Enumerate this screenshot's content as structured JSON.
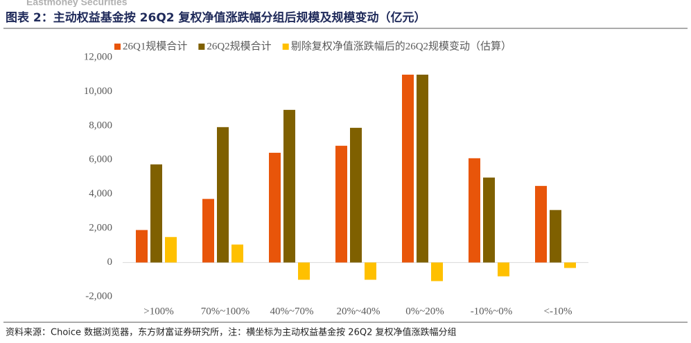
{
  "brand": "Eastmoney Securities",
  "title": "图表 2：主动权益基金按 26Q2 复权净值涨跌幅分组后规模及规模变动（亿元）",
  "footer": "资料来源：Choice 数据浏览器，东方财富证券研究所，注：横坐标为主动权益基金按 26Q2 复权净值涨跌幅分组",
  "chart_data": {
    "type": "bar",
    "categories": [
      ">100%",
      "70%~100%",
      "40%~70%",
      "20%~40%",
      "0%~20%",
      "-10%~0%",
      "<-10%"
    ],
    "series": [
      {
        "name": "26Q1规模合计",
        "color": "#E8550A",
        "values": [
          1900,
          3720,
          6420,
          6830,
          10990,
          6100,
          4480
        ]
      },
      {
        "name": "26Q2规模合计",
        "color": "#7F6000",
        "values": [
          5740,
          7920,
          8930,
          7880,
          10990,
          4970,
          3070
        ]
      },
      {
        "name": "剔除复权净值涨跌幅后的26Q2规模变动（估算）",
        "color": "#FFC000",
        "values": [
          1490,
          1050,
          -1010,
          -1010,
          -1090,
          -810,
          -320
        ]
      }
    ],
    "ylim": [
      -2000,
      12000
    ],
    "yticks": [
      {
        "value": -2000,
        "label": "-2,000"
      },
      0,
      {
        "value": 2000,
        "label": "2,000"
      },
      {
        "value": 4000,
        "label": "4,000"
      },
      {
        "value": 6000,
        "label": "6,000"
      },
      {
        "value": 8000,
        "label": "8,000"
      },
      {
        "value": 10000,
        "label": "10,000"
      },
      {
        "value": 12000,
        "label": "12,000"
      }
    ],
    "legend": "top"
  }
}
